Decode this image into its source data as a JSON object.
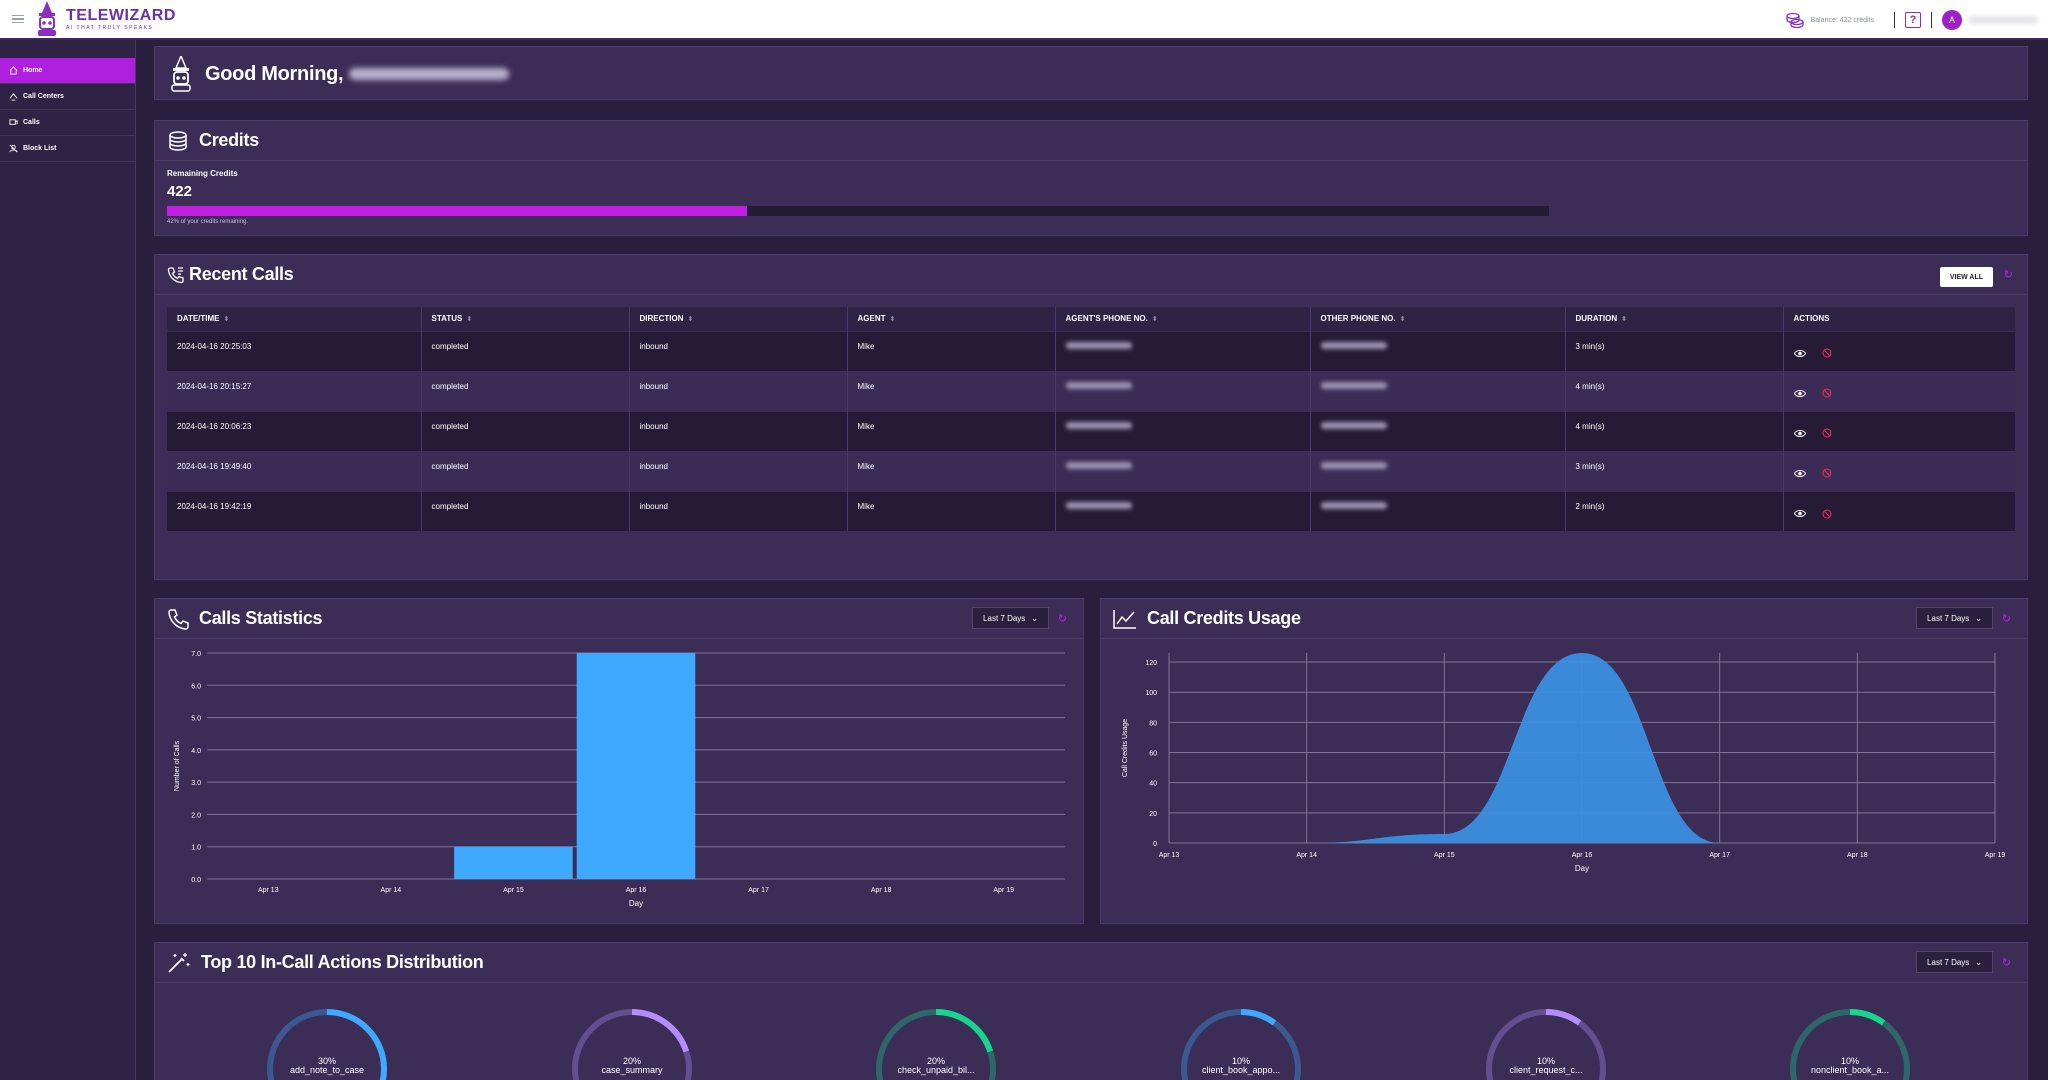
{
  "brand": {
    "name": "TELEWIZARD",
    "tagline": "AI THAT TRULY SPEAKS"
  },
  "topbar": {
    "balance": "Balance: 422 credits",
    "help": "?",
    "avatar_initial": "A"
  },
  "sidebar": {
    "items": [
      {
        "label": "Home",
        "icon": "home-icon",
        "active": true
      },
      {
        "label": "Call Centers",
        "icon": "headset-icon",
        "active": false
      },
      {
        "label": "Calls",
        "icon": "calls-icon",
        "active": false
      },
      {
        "label": "Block List",
        "icon": "block-user-icon",
        "active": false
      }
    ]
  },
  "greeting": {
    "text": "Good Morning,"
  },
  "credits": {
    "title": "Credits",
    "remaining_label": "Remaining Credits",
    "remaining_value": "422",
    "percent": 42,
    "note": "42% of your credits remaining."
  },
  "recent_calls": {
    "title": "Recent Calls",
    "view_all": "VIEW ALL",
    "columns": [
      "DATE/TIME",
      "STATUS",
      "DIRECTION",
      "AGENT",
      "AGENT'S PHONE NO.",
      "OTHER PHONE NO.",
      "DURATION",
      "ACTIONS"
    ],
    "rows": [
      {
        "datetime": "2024-04-16 20:25:03",
        "status": "completed",
        "direction": "inbound",
        "agent": "Mike",
        "duration": "3 min(s)"
      },
      {
        "datetime": "2024-04-16 20:15:27",
        "status": "completed",
        "direction": "inbound",
        "agent": "Mike",
        "duration": "4 min(s)"
      },
      {
        "datetime": "2024-04-16 20:06:23",
        "status": "completed",
        "direction": "inbound",
        "agent": "Mike",
        "duration": "4 min(s)"
      },
      {
        "datetime": "2024-04-16 19:49:40",
        "status": "completed",
        "direction": "inbound",
        "agent": "Mike",
        "duration": "3 min(s)"
      },
      {
        "datetime": "2024-04-16 19:42:19",
        "status": "completed",
        "direction": "inbound",
        "agent": "Mike",
        "duration": "2 min(s)"
      }
    ]
  },
  "calls_statistics": {
    "title": "Calls Statistics",
    "range": "Last 7 Days"
  },
  "credits_usage": {
    "title": "Call Credits Usage",
    "range": "Last 7 Days"
  },
  "actions_distribution": {
    "title": "Top 10 In-Call Actions Distribution",
    "range": "Last 7 Days",
    "items": [
      {
        "percent": "30%",
        "name": "add_note_to_case",
        "value": 30,
        "color": "#3fa8ff"
      },
      {
        "percent": "20%",
        "name": "case_summary",
        "value": 20,
        "color": "#b38cff"
      },
      {
        "percent": "20%",
        "name": "check_unpaid_bil...",
        "value": 20,
        "color": "#18d48f"
      },
      {
        "percent": "10%",
        "name": "client_book_appo...",
        "value": 10,
        "color": "#3fa8ff"
      },
      {
        "percent": "10%",
        "name": "client_request_c...",
        "value": 10,
        "color": "#b38cff"
      },
      {
        "percent": "10%",
        "name": "nonclient_book_a...",
        "value": 10,
        "color": "#18d48f"
      }
    ]
  },
  "chart_data": [
    {
      "type": "bar",
      "title": "",
      "xlabel": "Day",
      "ylabel": "Number of Calls",
      "categories": [
        "Apr 13",
        "Apr 14",
        "Apr 15",
        "Apr 16",
        "Apr 17",
        "Apr 18",
        "Apr 19"
      ],
      "values": [
        0,
        0,
        1,
        7,
        0,
        0,
        0
      ],
      "yticks": [
        "0.0",
        "1.0",
        "2.0",
        "3.0",
        "4.0",
        "5.0",
        "6.0",
        "7.0"
      ],
      "ylim": [
        0,
        7
      ],
      "color": "#3fa8ff",
      "grid": true
    },
    {
      "type": "area",
      "title": "",
      "xlabel": "Day",
      "ylabel": "Call Credits Usage",
      "categories": [
        "Apr 13",
        "Apr 14",
        "Apr 15",
        "Apr 16",
        "Apr 17",
        "Apr 18",
        "Apr 19"
      ],
      "values": [
        0,
        0,
        6,
        126,
        0,
        0,
        0
      ],
      "yticks": [
        "0",
        "20",
        "40",
        "60",
        "80",
        "100",
        "120"
      ],
      "ylim": [
        0,
        126
      ],
      "color": "#3a8fe0",
      "grid": true
    }
  ]
}
